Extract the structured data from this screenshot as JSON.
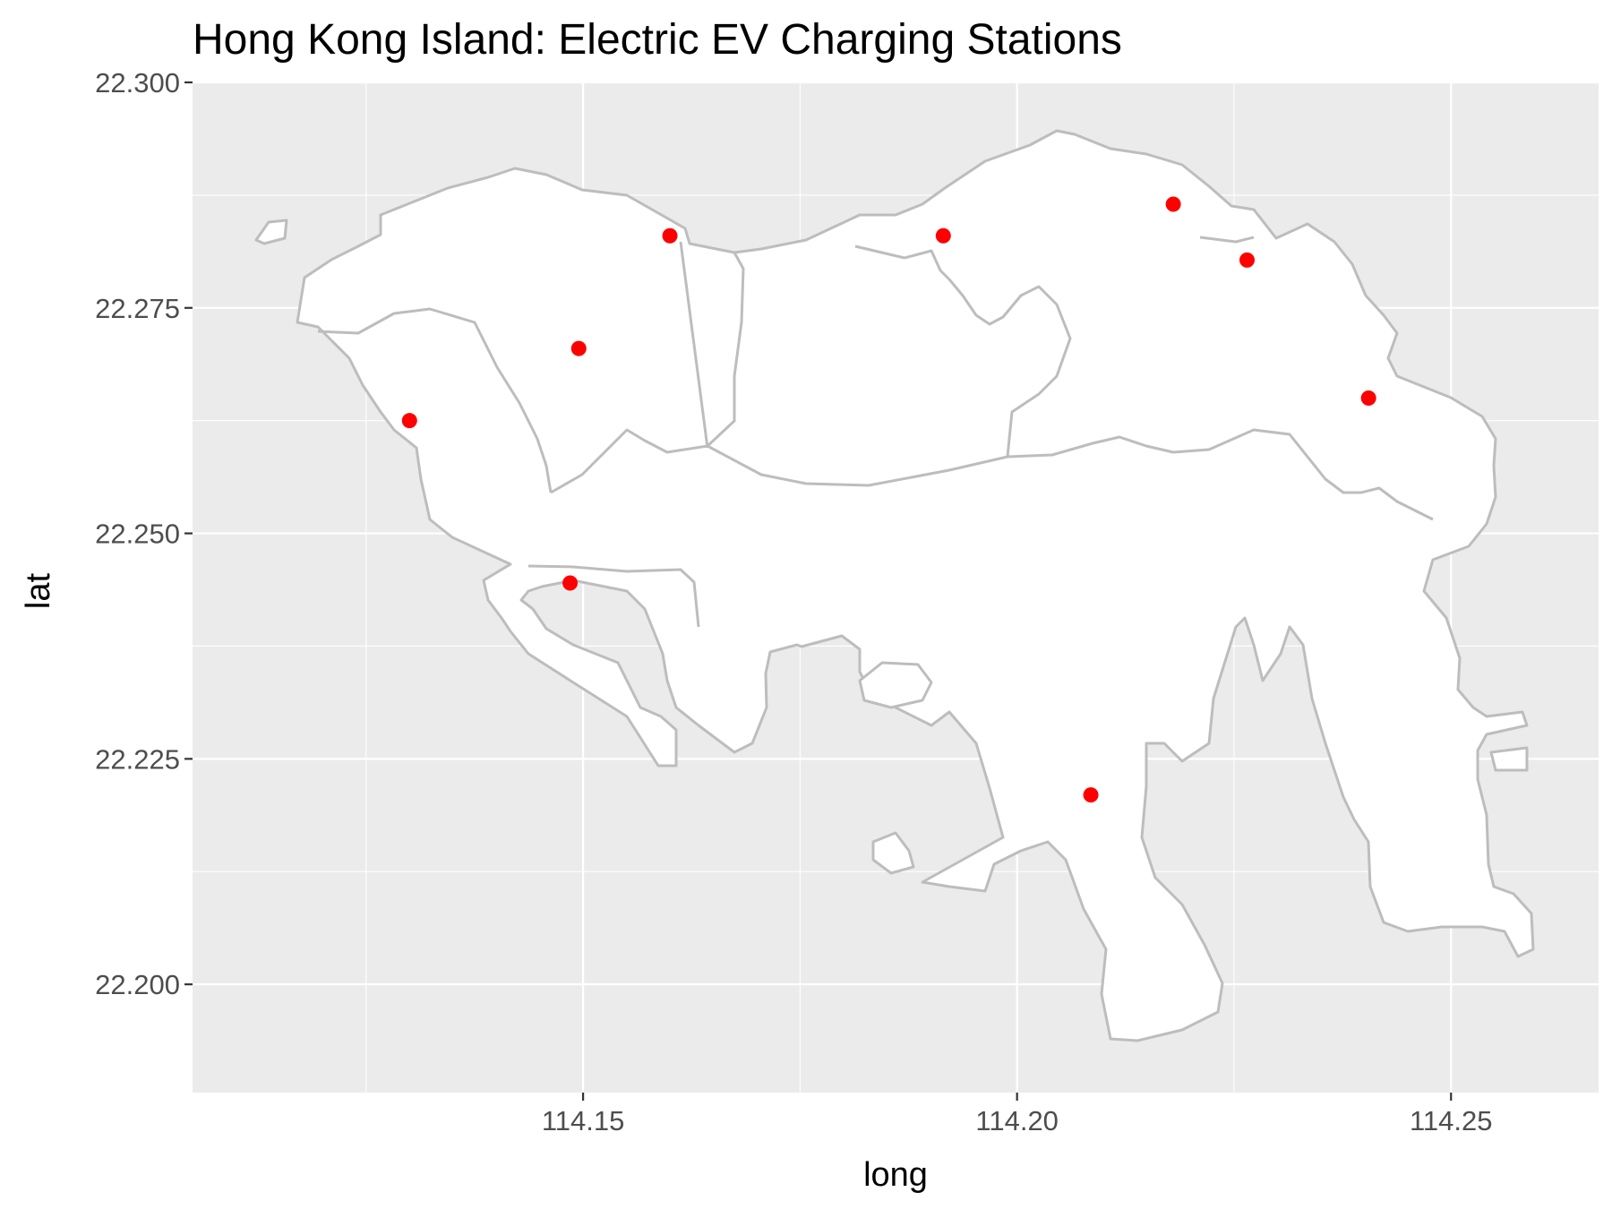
{
  "title": "Hong Kong Island: Electric EV Charging Stations",
  "colors": {
    "panel_background": "#EBEBEB",
    "land_fill": "#FFFFFF",
    "boundary": "#BDBDBD",
    "station_point": "#FF0000"
  },
  "chart_data": {
    "type": "scatter",
    "title": "Hong Kong Island: Electric EV Charging Stations",
    "xlabel": "long",
    "ylabel": "lat",
    "xlim": [
      114.105,
      114.267
    ],
    "ylim": [
      22.188,
      22.3
    ],
    "x_ticks": [
      114.15,
      114.2,
      114.25
    ],
    "x_tick_labels": [
      "114.15",
      "114.20",
      "114.25"
    ],
    "y_ticks": [
      22.2,
      22.225,
      22.25,
      22.275,
      22.3
    ],
    "y_tick_labels": [
      "22.200",
      "22.225",
      "22.250",
      "22.275",
      "22.300"
    ],
    "grid": true,
    "legend": "none",
    "basemap": "Hong Kong Island district boundaries",
    "points": [
      {
        "long": 114.13,
        "lat": 22.2625
      },
      {
        "long": 114.1495,
        "lat": 22.2705
      },
      {
        "long": 114.16,
        "lat": 22.283
      },
      {
        "long": 114.1485,
        "lat": 22.2445
      },
      {
        "long": 114.1915,
        "lat": 22.283
      },
      {
        "long": 114.218,
        "lat": 22.2865
      },
      {
        "long": 114.2265,
        "lat": 22.2803
      },
      {
        "long": 114.2405,
        "lat": 22.265
      },
      {
        "long": 114.2085,
        "lat": 22.221
      }
    ]
  }
}
